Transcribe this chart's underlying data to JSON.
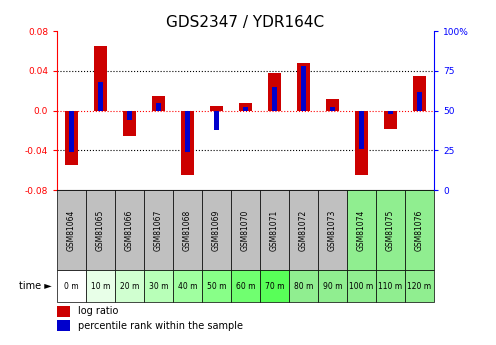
{
  "title": "GDS2347 / YDR164C",
  "samples": [
    "GSM81064",
    "GSM81065",
    "GSM81066",
    "GSM81067",
    "GSM81068",
    "GSM81069",
    "GSM81070",
    "GSM81071",
    "GSM81072",
    "GSM81073",
    "GSM81074",
    "GSM81075",
    "GSM81076"
  ],
  "time_labels": [
    "0 m",
    "10 m",
    "20 m",
    "30 m",
    "40 m",
    "50 m",
    "60 m",
    "70 m",
    "80 m",
    "90 m",
    "100 m",
    "110 m",
    "120 m"
  ],
  "log_ratio": [
    -0.055,
    0.065,
    -0.025,
    0.015,
    -0.065,
    0.005,
    0.008,
    0.038,
    0.048,
    0.012,
    -0.065,
    -0.018,
    0.035
  ],
  "pct_rank": [
    0.24,
    0.68,
    0.44,
    0.55,
    0.24,
    0.38,
    0.52,
    0.65,
    0.78,
    0.52,
    0.26,
    0.48,
    0.62
  ],
  "ylim": [
    -0.08,
    0.08
  ],
  "yticks_left": [
    -0.08,
    -0.04,
    0.0,
    0.04,
    0.08
  ],
  "yticks_right": [
    0,
    25,
    50,
    75,
    100
  ],
  "bar_color_red": "#cc0000",
  "bar_color_blue": "#0000cc",
  "bg_color_plot": "#ffffff",
  "sample_bg_colors": [
    "#c0c0c0",
    "#c0c0c0",
    "#c0c0c0",
    "#c0c0c0",
    "#c0c0c0",
    "#c0c0c0",
    "#c0c0c0",
    "#c0c0c0",
    "#c0c0c0",
    "#c0c0c0",
    "#90ee90",
    "#90ee90",
    "#90ee90"
  ],
  "time_bg_colors": [
    "#ffffff",
    "#e8ffe8",
    "#d0ffd0",
    "#b8ffb8",
    "#a0ffa0",
    "#88ff88",
    "#70ff70",
    "#58ff58",
    "#90ee90",
    "#90ee90",
    "#90ee90",
    "#90ee90",
    "#90ee90"
  ],
  "dotted_line_color": "#000000",
  "zero_line_color": "#ff0000",
  "title_fontsize": 11,
  "tick_fontsize": 6.5,
  "bar_width": 0.45,
  "blue_bar_width": 0.18
}
